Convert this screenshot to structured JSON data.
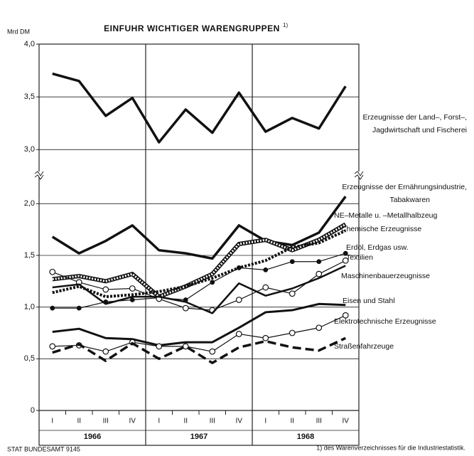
{
  "chart_data": {
    "type": "line",
    "title": "EINFUHR WICHTIGER WARENGRUPPEN",
    "title_note": "1)",
    "y_label": "Mrd DM",
    "source": "STAT BUNDESAMT 9145",
    "footnote": "1) des Warenverzeichnisses für die Industriestatistik.",
    "categories": [
      "I",
      "II",
      "III",
      "IV",
      "I",
      "II",
      "III",
      "IV",
      "I",
      "II",
      "III",
      "IV"
    ],
    "years": [
      "1966",
      "1967",
      "1968"
    ],
    "ylim": [
      0,
      4.0
    ],
    "y_break": [
      2.25,
      2.8
    ],
    "yticks": [
      0,
      {
        "value": 0.5,
        "label": "0,5"
      },
      {
        "value": 1.0,
        "label": "1,0"
      },
      {
        "value": 1.5,
        "label": "1,5"
      },
      {
        "value": 2.0,
        "label": "2,0"
      },
      {
        "value": 3.0,
        "label": "3,0"
      },
      {
        "value": 3.5,
        "label": "3,5"
      },
      {
        "value": 4.0,
        "label": "4,0"
      }
    ],
    "grid": true,
    "series": [
      {
        "name": [
          "Erzeugnisse der Land–, Forst–,",
          "Jagdwirtschaft und Fischerei"
        ],
        "color": "#111",
        "style": "solid",
        "width": 3.5,
        "values": [
          3.72,
          3.65,
          3.32,
          3.49,
          3.07,
          3.38,
          3.16,
          3.54,
          3.17,
          3.3,
          3.2,
          3.6
        ]
      },
      {
        "name": [
          "Erzeugnisse der Ernährungsindustrie,",
          "Tabakwaren"
        ],
        "color": "#111",
        "style": "solid",
        "width": 3.5,
        "values": [
          1.68,
          1.52,
          1.64,
          1.79,
          1.55,
          1.52,
          1.47,
          1.79,
          1.64,
          1.6,
          1.72,
          2.07
        ]
      },
      {
        "name": [
          "NE–Metalle u. –Metallhalbzeug"
        ],
        "color": "#111",
        "style": "hatched",
        "width": 6,
        "values": [
          1.27,
          1.3,
          1.25,
          1.32,
          1.1,
          1.2,
          1.32,
          1.61,
          1.65,
          1.55,
          1.65,
          1.8
        ]
      },
      {
        "name": [
          "Chemische Erzeugnisse"
        ],
        "color": "#111",
        "style": "dotted",
        "width": 4,
        "values": [
          1.14,
          1.2,
          1.1,
          1.12,
          1.15,
          1.2,
          1.28,
          1.38,
          1.45,
          1.58,
          1.62,
          1.74
        ]
      },
      {
        "name": [
          "Erdöl, Erdgas usw."
        ],
        "color": "#111",
        "style": "dots",
        "width": 1.2,
        "values": [
          0.99,
          0.99,
          1.05,
          1.07,
          1.09,
          1.07,
          1.24,
          1.38,
          1.36,
          1.44,
          1.44,
          1.52
        ]
      },
      {
        "name": [
          "Textilien"
        ],
        "color": "#111",
        "style": "circles",
        "width": 1.2,
        "values": [
          1.34,
          1.24,
          1.17,
          1.18,
          1.08,
          0.99,
          0.97,
          1.07,
          1.19,
          1.13,
          1.32,
          1.45
        ]
      },
      {
        "name": [
          "Maschinenbauerzeugnisse"
        ],
        "color": "#111",
        "style": "solid",
        "width": 2.5,
        "values": [
          1.19,
          1.22,
          1.03,
          1.1,
          1.1,
          1.05,
          0.94,
          1.23,
          1.11,
          1.18,
          1.28,
          1.4
        ]
      },
      {
        "name": [
          "Eisen und Stahl"
        ],
        "color": "#111",
        "style": "solid",
        "width": 3,
        "values": [
          0.76,
          0.79,
          0.7,
          0.69,
          0.63,
          0.66,
          0.66,
          0.8,
          0.95,
          0.97,
          1.03,
          1.02
        ]
      },
      {
        "name": [
          "Elektrotechnische Erzeugnisse"
        ],
        "color": "#111",
        "style": "circles",
        "width": 1.2,
        "values": [
          0.62,
          0.63,
          0.57,
          0.66,
          0.62,
          0.62,
          0.57,
          0.74,
          0.7,
          0.75,
          0.8,
          0.92
        ]
      },
      {
        "name": [
          "Straßenfahrzeuge"
        ],
        "color": "#111",
        "style": "dashed",
        "width": 3.5,
        "values": [
          0.56,
          0.64,
          0.48,
          0.65,
          0.5,
          0.62,
          0.46,
          0.61,
          0.67,
          0.61,
          0.58,
          0.7
        ]
      }
    ]
  }
}
